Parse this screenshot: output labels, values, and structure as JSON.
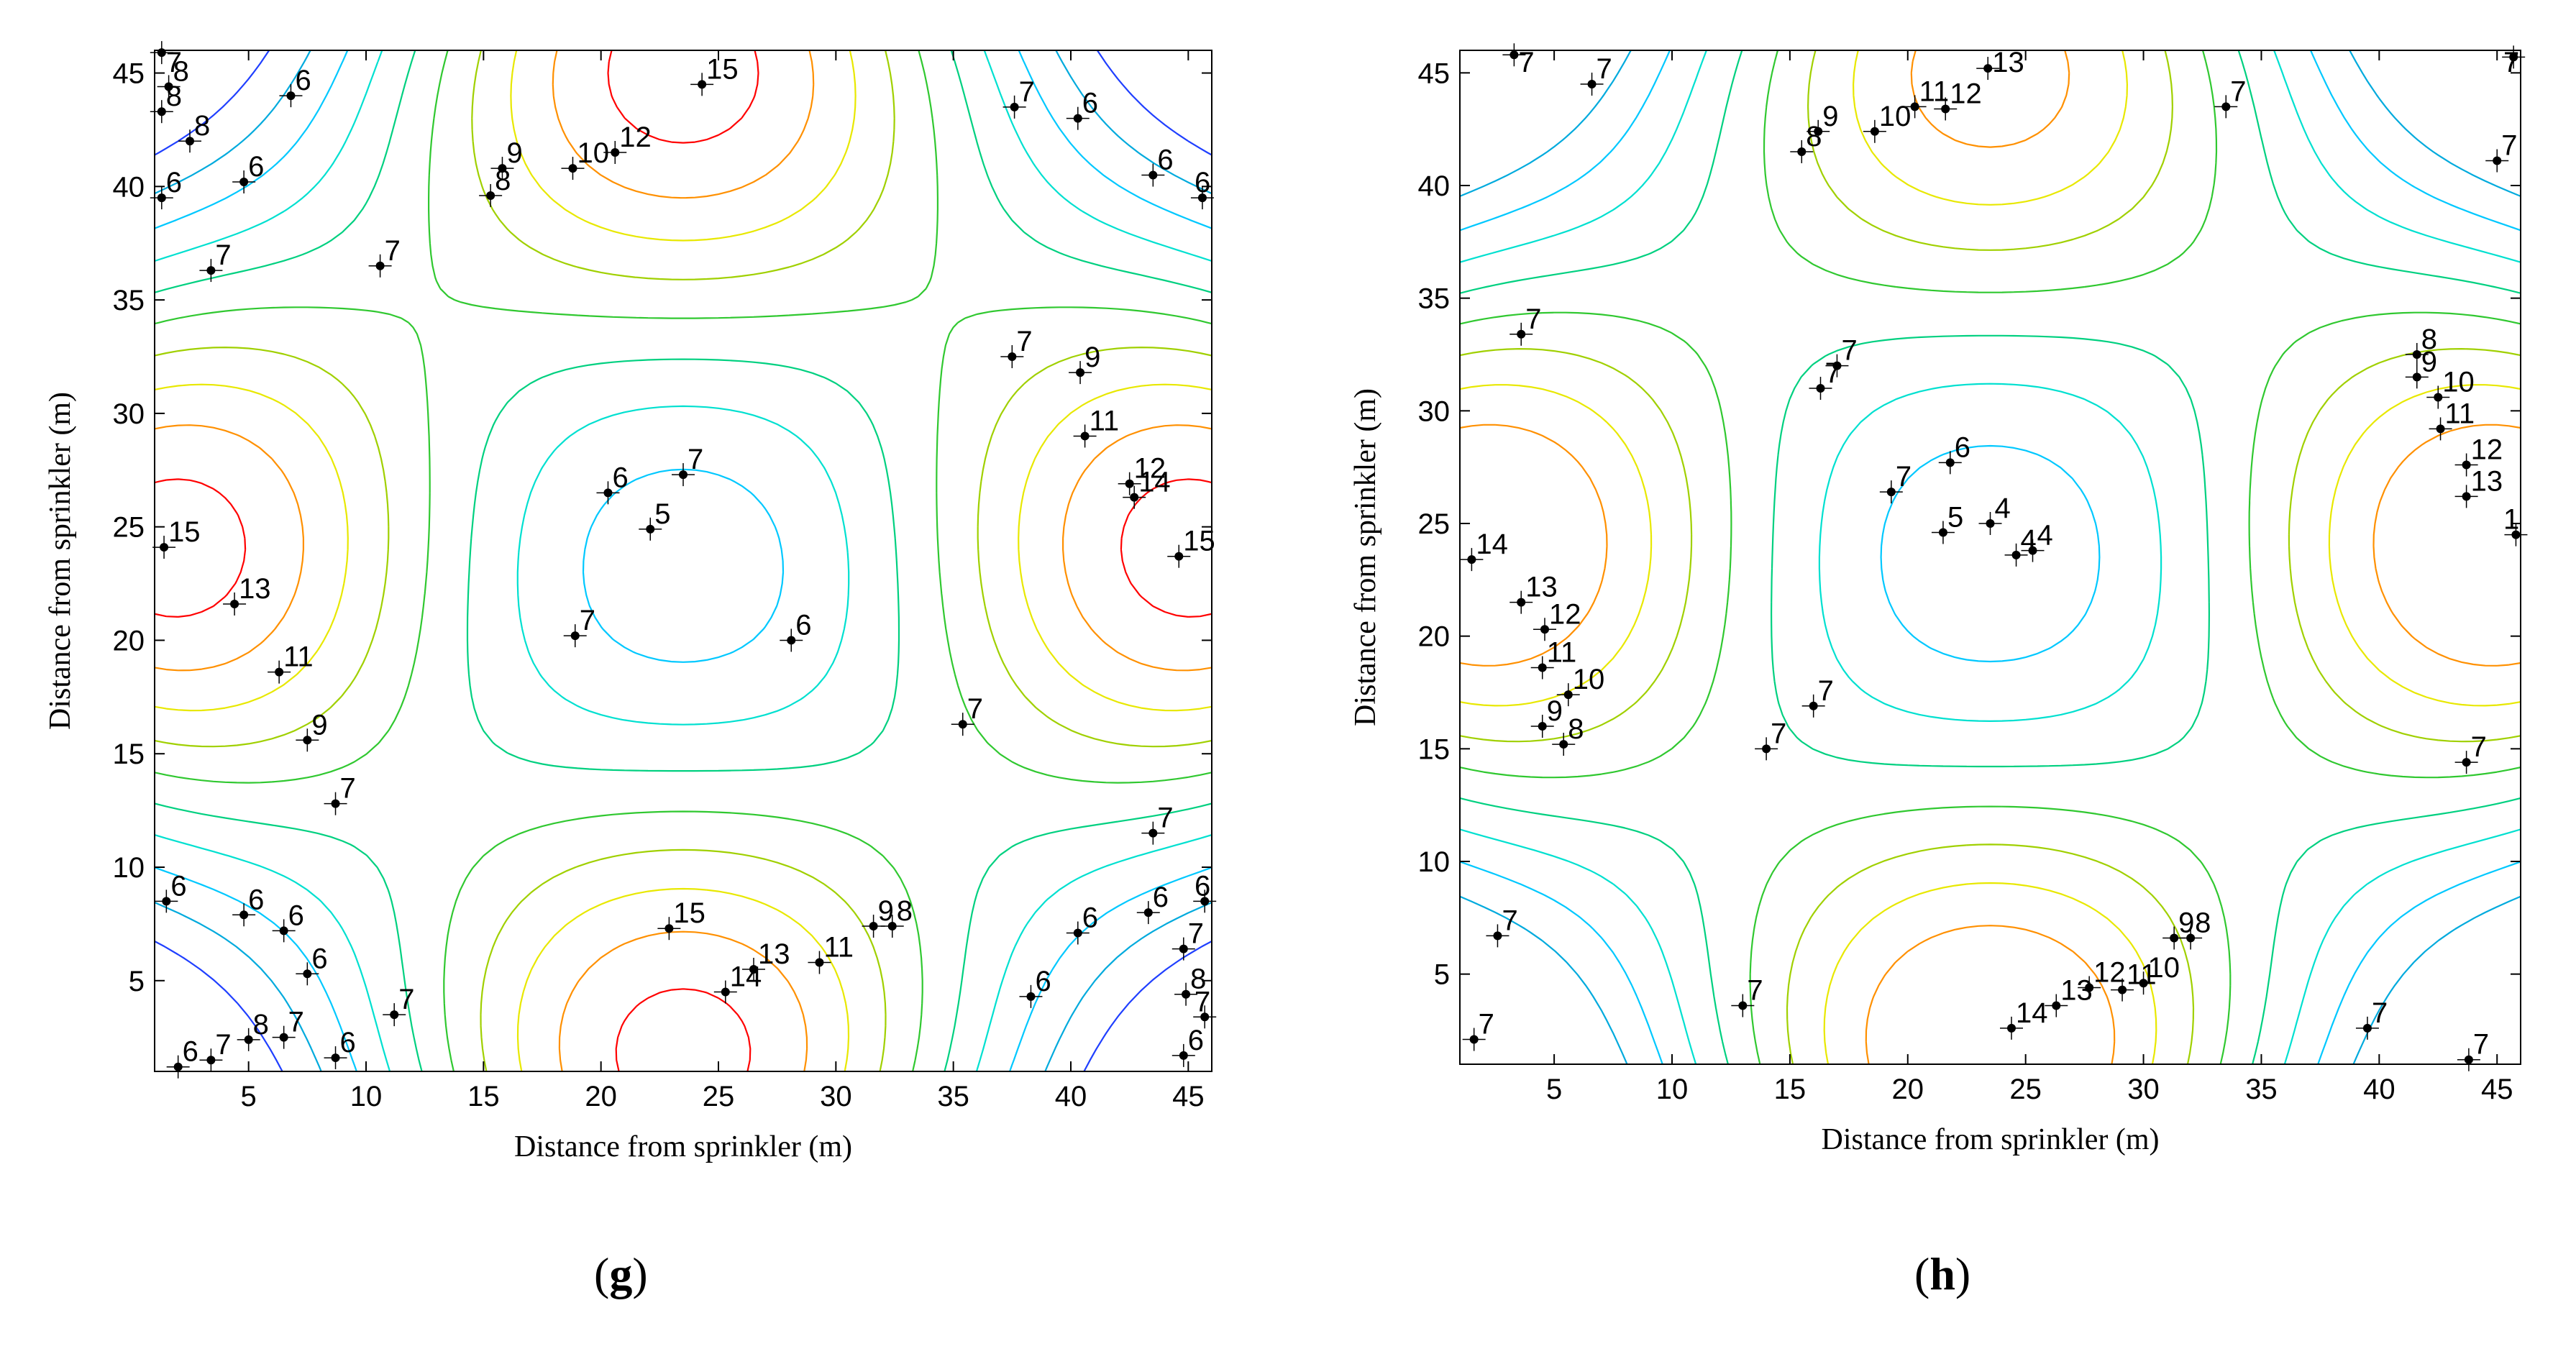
{
  "colors": {
    "4": "#0000c8",
    "5": "#0000ff",
    "6": "#1f3fff",
    "7": "#00aadd",
    "8": "#00c8ff",
    "9": "#00e0d0",
    "10": "#00d080",
    "11": "#30c830",
    "12": "#a0d000",
    "13": "#e8e800",
    "14": "#ff9000",
    "15": "#ff0000"
  },
  "chart_data": [
    {
      "panel": "g",
      "type": "contour",
      "xlabel": "Distance from sprinkler (m)",
      "ylabel": "Distance from sprinkler (m)",
      "xlim": [
        1,
        46
      ],
      "ylim": [
        1,
        46
      ],
      "xticks": [
        5,
        10,
        15,
        20,
        25,
        30,
        35,
        40,
        45
      ],
      "yticks": [
        5,
        10,
        15,
        20,
        25,
        30,
        35,
        40,
        45
      ],
      "sources": [
        {
          "x": 23.5,
          "y": 46,
          "a": 15
        },
        {
          "x": 23.5,
          "y": 1,
          "a": 15
        },
        {
          "x": 1,
          "y": 24,
          "a": 15
        },
        {
          "x": 46,
          "y": 24,
          "a": 15
        }
      ],
      "spread": 11,
      "base": 0,
      "levels": [
        6,
        7,
        8,
        9,
        10,
        11,
        12,
        13,
        14,
        15
      ],
      "labels": [
        {
          "t": "7",
          "x": 1.3,
          "y": 45.9
        },
        {
          "t": "8",
          "x": 1.6,
          "y": 44.4
        },
        {
          "t": "8",
          "x": 1.3,
          "y": 43.3
        },
        {
          "t": "8",
          "x": 2.5,
          "y": 42.0
        },
        {
          "t": "6",
          "x": 1.3,
          "y": 39.5
        },
        {
          "t": "6",
          "x": 4.8,
          "y": 40.2
        },
        {
          "t": "6",
          "x": 6.8,
          "y": 44.0
        },
        {
          "t": "7",
          "x": 3.4,
          "y": 36.3
        },
        {
          "t": "7",
          "x": 10.6,
          "y": 36.5
        },
        {
          "t": "9",
          "x": 15.8,
          "y": 40.8
        },
        {
          "t": "8",
          "x": 15.3,
          "y": 39.6
        },
        {
          "t": "10",
          "x": 18.8,
          "y": 40.8
        },
        {
          "t": "12",
          "x": 20.6,
          "y": 41.5
        },
        {
          "t": "15",
          "x": 24.3,
          "y": 44.5
        },
        {
          "t": "7",
          "x": 37.6,
          "y": 43.5
        },
        {
          "t": "6",
          "x": 40.3,
          "y": 43.0
        },
        {
          "t": "6",
          "x": 43.5,
          "y": 40.5
        },
        {
          "t": "6",
          "x": 45.6,
          "y": 39.5
        },
        {
          "t": "7",
          "x": 37.5,
          "y": 32.5
        },
        {
          "t": "9",
          "x": 40.4,
          "y": 31.8
        },
        {
          "t": "11",
          "x": 40.6,
          "y": 29.0
        },
        {
          "t": "12",
          "x": 42.5,
          "y": 26.9
        },
        {
          "t": "14",
          "x": 42.7,
          "y": 26.3
        },
        {
          "t": "15",
          "x": 44.6,
          "y": 23.7
        },
        {
          "t": "15",
          "x": 1.4,
          "y": 24.1
        },
        {
          "t": "13",
          "x": 4.4,
          "y": 21.6
        },
        {
          "t": "11",
          "x": 6.3,
          "y": 18.6
        },
        {
          "t": "9",
          "x": 7.5,
          "y": 15.6
        },
        {
          "t": "7",
          "x": 8.7,
          "y": 12.8
        },
        {
          "t": "6",
          "x": 20.3,
          "y": 26.5
        },
        {
          "t": "7",
          "x": 23.5,
          "y": 27.3
        },
        {
          "t": "5",
          "x": 22.1,
          "y": 24.9
        },
        {
          "t": "7",
          "x": 18.9,
          "y": 20.2
        },
        {
          "t": "6",
          "x": 28.1,
          "y": 20.0
        },
        {
          "t": "7",
          "x": 35.4,
          "y": 16.3
        },
        {
          "t": "7",
          "x": 43.5,
          "y": 11.5
        },
        {
          "t": "6",
          "x": 1.5,
          "y": 8.5
        },
        {
          "t": "6",
          "x": 4.8,
          "y": 7.9
        },
        {
          "t": "6",
          "x": 6.5,
          "y": 7.2
        },
        {
          "t": "6",
          "x": 7.5,
          "y": 5.3
        },
        {
          "t": "7",
          "x": 11.2,
          "y": 3.5
        },
        {
          "t": "6",
          "x": 2.0,
          "y": 1.2
        },
        {
          "t": "7",
          "x": 3.4,
          "y": 1.5
        },
        {
          "t": "8",
          "x": 5.0,
          "y": 2.4
        },
        {
          "t": "7",
          "x": 6.5,
          "y": 2.5
        },
        {
          "t": "6",
          "x": 8.7,
          "y": 1.6
        },
        {
          "t": "15",
          "x": 22.9,
          "y": 7.3
        },
        {
          "t": "14",
          "x": 25.3,
          "y": 4.5
        },
        {
          "t": "13",
          "x": 26.5,
          "y": 5.5
        },
        {
          "t": "11",
          "x": 29.3,
          "y": 5.8
        },
        {
          "t": "9",
          "x": 31.6,
          "y": 7.4
        },
        {
          "t": "8",
          "x": 32.4,
          "y": 7.4
        },
        {
          "t": "6",
          "x": 38.3,
          "y": 4.3
        },
        {
          "t": "6",
          "x": 40.3,
          "y": 7.1
        },
        {
          "t": "6",
          "x": 43.3,
          "y": 8.0
        },
        {
          "t": "7",
          "x": 44.8,
          "y": 6.4
        },
        {
          "t": "8",
          "x": 44.9,
          "y": 4.4
        },
        {
          "t": "6",
          "x": 44.8,
          "y": 1.7
        },
        {
          "t": "7",
          "x": 45.7,
          "y": 3.4
        },
        {
          "t": "6",
          "x": 45.7,
          "y": 8.5
        }
      ]
    },
    {
      "panel": "h",
      "type": "contour",
      "xlabel": "Distance from sprinkler (m)",
      "ylabel": "Distance from sprinkler (m)",
      "xlim": [
        1,
        46
      ],
      "ylim": [
        1,
        46
      ],
      "xticks": [
        5,
        10,
        15,
        20,
        25,
        30,
        35,
        40,
        45
      ],
      "yticks": [
        5,
        10,
        15,
        20,
        25,
        30,
        35,
        40,
        45
      ],
      "sources": [
        {
          "x": 23.5,
          "y": 46,
          "a": 14
        },
        {
          "x": 23.5,
          "y": 1,
          "a": 15
        },
        {
          "x": 1,
          "y": 24,
          "a": 15
        },
        {
          "x": 46,
          "y": 24,
          "a": 15
        }
      ],
      "spread": 11,
      "base": 0,
      "levels": [
        7,
        8,
        9,
        10,
        11,
        12,
        13,
        14
      ],
      "labels": [
        {
          "t": "7",
          "x": 3.3,
          "y": 45.8
        },
        {
          "t": "7",
          "x": 6.6,
          "y": 44.5
        },
        {
          "t": "8",
          "x": 15.5,
          "y": 41.5
        },
        {
          "t": "9",
          "x": 16.2,
          "y": 42.4
        },
        {
          "t": "10",
          "x": 18.6,
          "y": 42.4
        },
        {
          "t": "11",
          "x": 20.3,
          "y": 43.5
        },
        {
          "t": "12",
          "x": 21.6,
          "y": 43.4
        },
        {
          "t": "13",
          "x": 23.4,
          "y": 45.2
        },
        {
          "t": "7",
          "x": 33.5,
          "y": 43.5
        },
        {
          "t": "7",
          "x": 45.7,
          "y": 45.7
        },
        {
          "t": "7",
          "x": 45.0,
          "y": 41.1
        },
        {
          "t": "7",
          "x": 3.6,
          "y": 33.4
        },
        {
          "t": "7",
          "x": 16.3,
          "y": 31.0
        },
        {
          "t": "7",
          "x": 17.0,
          "y": 32.0
        },
        {
          "t": "8",
          "x": 41.6,
          "y": 32.5
        },
        {
          "t": "9",
          "x": 41.6,
          "y": 31.5
        },
        {
          "t": "10",
          "x": 42.5,
          "y": 30.6
        },
        {
          "t": "11",
          "x": 42.6,
          "y": 29.2
        },
        {
          "t": "12",
          "x": 43.7,
          "y": 27.6
        },
        {
          "t": "13",
          "x": 43.7,
          "y": 26.2
        },
        {
          "t": "1",
          "x": 45.8,
          "y": 24.5
        },
        {
          "t": "6",
          "x": 21.8,
          "y": 27.7
        },
        {
          "t": "7",
          "x": 19.3,
          "y": 26.4
        },
        {
          "t": "5",
          "x": 21.5,
          "y": 24.6
        },
        {
          "t": "4",
          "x": 23.5,
          "y": 25.0
        },
        {
          "t": "4",
          "x": 24.6,
          "y": 23.6
        },
        {
          "t": "4",
          "x": 25.3,
          "y": 23.8
        },
        {
          "t": "14",
          "x": 1.5,
          "y": 23.4
        },
        {
          "t": "13",
          "x": 3.6,
          "y": 21.5
        },
        {
          "t": "12",
          "x": 4.6,
          "y": 20.3
        },
        {
          "t": "11",
          "x": 4.5,
          "y": 18.6
        },
        {
          "t": "10",
          "x": 5.6,
          "y": 17.4
        },
        {
          "t": "9",
          "x": 4.5,
          "y": 16.0
        },
        {
          "t": "8",
          "x": 5.4,
          "y": 15.2
        },
        {
          "t": "7",
          "x": 16.0,
          "y": 16.9
        },
        {
          "t": "7",
          "x": 14.0,
          "y": 15.0
        },
        {
          "t": "7",
          "x": 43.7,
          "y": 14.4
        },
        {
          "t": "7",
          "x": 2.6,
          "y": 6.7
        },
        {
          "t": "7",
          "x": 1.6,
          "y": 2.1
        },
        {
          "t": "7",
          "x": 13.0,
          "y": 3.6
        },
        {
          "t": "14",
          "x": 24.4,
          "y": 2.6
        },
        {
          "t": "13",
          "x": 26.3,
          "y": 3.6
        },
        {
          "t": "12",
          "x": 27.7,
          "y": 4.4
        },
        {
          "t": "11",
          "x": 29.1,
          "y": 4.3
        },
        {
          "t": "10",
          "x": 30.0,
          "y": 4.6
        },
        {
          "t": "9",
          "x": 31.3,
          "y": 6.6
        },
        {
          "t": "8",
          "x": 32.0,
          "y": 6.6
        },
        {
          "t": "7",
          "x": 39.5,
          "y": 2.6
        },
        {
          "t": "7",
          "x": 43.8,
          "y": 1.2
        }
      ]
    }
  ],
  "panels": [
    {
      "label": "g"
    },
    {
      "label": "h"
    }
  ]
}
